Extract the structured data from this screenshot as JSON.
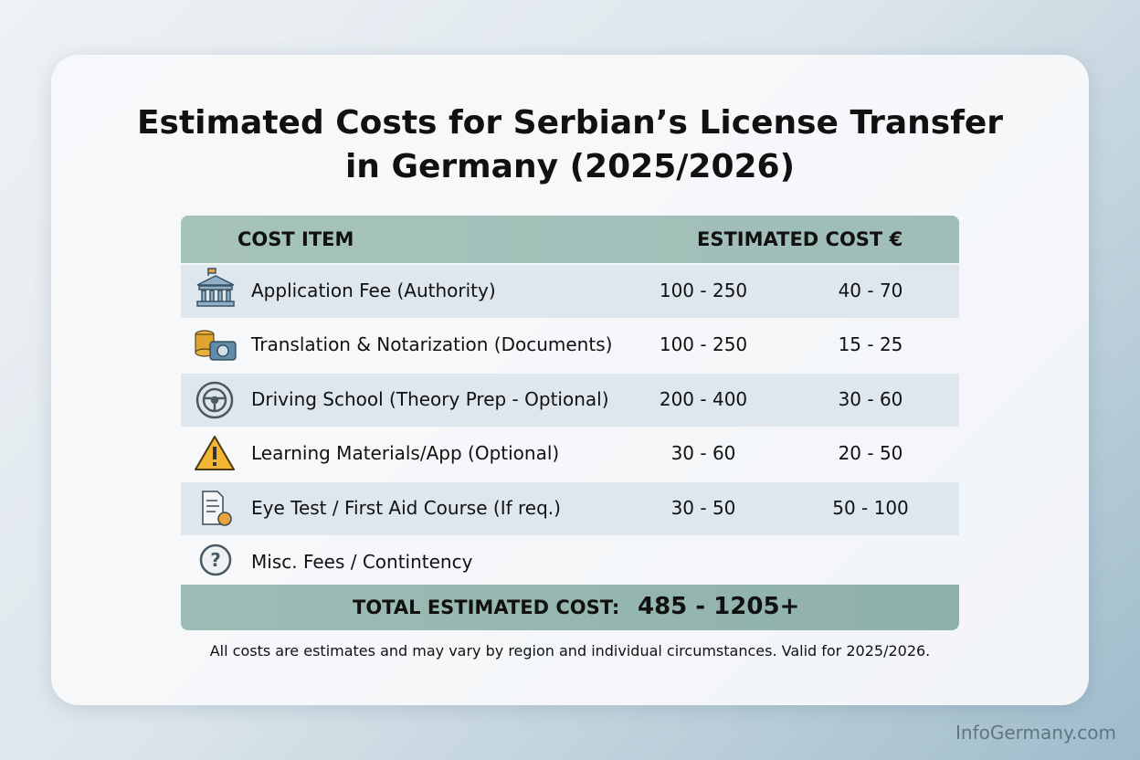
{
  "header": {
    "title_lines": [
      "Estimated Costs for Serbian’s License Transfer",
      "in Germany (2025/2026)"
    ]
  },
  "table": {
    "headers": [
      "COST ITEM",
      "ESTIMATED COST €"
    ],
    "rows": [
      {
        "item": "Application Fee (Authority)",
        "costs": [
          "100 - 250",
          "40 - 70"
        ]
      },
      {
        "item": "Translation & Notarization (Documents)",
        "costs": [
          "100 - 250",
          "15 - 25"
        ]
      },
      {
        "item": "Driving School (Theory Prep - Optional)",
        "costs": [
          "200 - 400",
          "30 - 60"
        ]
      },
      {
        "item": "Learning Materials/App (Optional)",
        "costs": [
          "30 - 60",
          "20 - 50"
        ]
      },
      {
        "item": "Eye Test / First Aid Course (If req.)",
        "costs": [
          "30 - 50",
          "50 - 100"
        ]
      },
      {
        "item": "Misc. Fees / Contintency",
        "costs": []
      }
    ],
    "total": {
      "label": "TOTAL ESTIMATED COST:",
      "value": "485 - 1205+"
    }
  },
  "footnote": "All costs are estimates and may vary by region and individual circumstances. Valid for 2025/2026.",
  "watermark": "InfoGermany.com"
}
